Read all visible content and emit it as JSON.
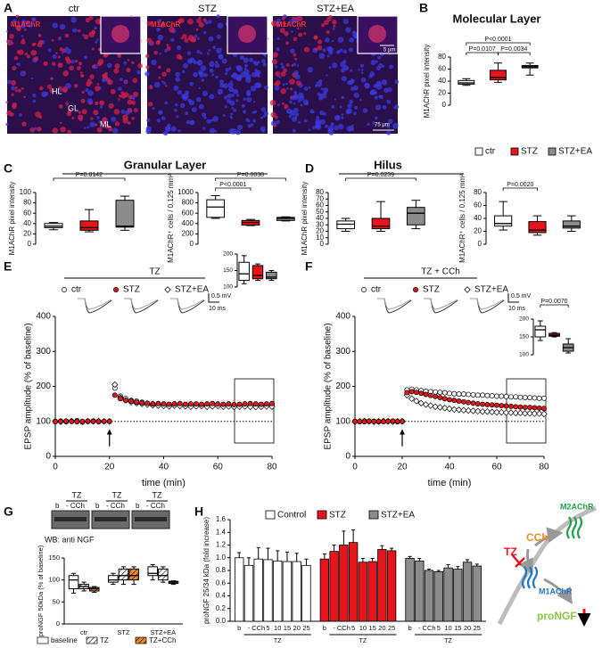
{
  "panel_labels": [
    "A",
    "B",
    "C",
    "D",
    "E",
    "F",
    "G",
    "H"
  ],
  "micrographs": {
    "titles": [
      "ctr",
      "STZ",
      "STZ+EA"
    ],
    "stain": "M1AChR",
    "regions": [
      "HL",
      "GL",
      "ML"
    ],
    "scale_bars": [
      "5 µm",
      "75 µm"
    ]
  },
  "group_legend": [
    {
      "name": "ctr",
      "color": "#ffffff"
    },
    {
      "name": "STZ",
      "color": "#e8141b"
    },
    {
      "name": "STZ+EA",
      "color": "#8c8c8c"
    }
  ],
  "blot": {
    "treatment": "TZ",
    "lanes": [
      "b",
      "- CCh"
    ],
    "caption": "WB: anti NGF"
  },
  "diagram": {
    "agonist": "CCh",
    "receptor_2": "M2AChR",
    "inhibitor": "TZ",
    "receptor_1": "M1AChR",
    "product": "proNGF"
  },
  "chart_data": [
    {
      "type": "box",
      "title": "Molecular Layer",
      "ylabel": "M1AChR pixel intensity",
      "ylim": [
        0,
        80
      ],
      "yticks": [
        0,
        20,
        40,
        60,
        80
      ],
      "boxes": [
        [
          33,
          35,
          37,
          41,
          44
        ],
        [
          38,
          42,
          46,
          58,
          70
        ],
        [
          50,
          62,
          64,
          66,
          70
        ]
      ],
      "brackets": [
        {
          "from": 0,
          "to": 2,
          "label": "P<0.0001"
        },
        {
          "from": 0,
          "to": 1,
          "label": "P=0.0107"
        },
        {
          "from": 1,
          "to": 2,
          "label": "P=0.0034"
        }
      ]
    },
    {
      "type": "box",
      "title": "Granular Layer",
      "ylabel": "M1AChR pixel intensity",
      "ylim": [
        0,
        100
      ],
      "yticks": [
        0,
        20,
        40,
        60,
        80,
        100
      ],
      "boxes": [
        [
          28,
          32,
          35,
          40,
          42
        ],
        [
          24,
          27,
          32,
          45,
          67
        ],
        [
          27,
          33,
          35,
          85,
          93
        ]
      ],
      "brackets": [
        {
          "from": 0,
          "to": 2,
          "label": "P=0.0142"
        }
      ]
    },
    {
      "type": "box",
      "ylabel": "M1AChR⁺ cells / 0.125 mm²",
      "ylim": [
        0,
        1000
      ],
      "yticks": [
        0,
        200,
        400,
        600,
        800,
        1000
      ],
      "boxes": [
        [
          500,
          520,
          720,
          860,
          940
        ],
        [
          360,
          370,
          420,
          460,
          480
        ],
        [
          450,
          460,
          500,
          520,
          530
        ]
      ],
      "brackets": [
        {
          "from": 0,
          "to": 1,
          "label": "P<0.0001"
        },
        {
          "from": 0,
          "to": 2,
          "label": "P=0.0038"
        }
      ]
    },
    {
      "type": "box",
      "title": "Hilus",
      "ylabel": "M1AChR pixel intensity",
      "ylim": [
        0,
        80
      ],
      "yticks": [
        0,
        10,
        20,
        30,
        40,
        50,
        60,
        70,
        80
      ],
      "boxes": [
        [
          20,
          24,
          31,
          36,
          40
        ],
        [
          20,
          24,
          28,
          40,
          66
        ],
        [
          24,
          30,
          48,
          57,
          68
        ]
      ],
      "brackets": [
        {
          "from": 0,
          "to": 2,
          "label": "P=0.0239"
        }
      ]
    },
    {
      "type": "box",
      "ylabel": "M1AChR⁺ cells / 0.125 mm²",
      "ylim": [
        0,
        80
      ],
      "yticks": [
        0,
        20,
        40,
        60,
        80
      ],
      "boxes": [
        [
          22,
          28,
          32,
          44,
          66
        ],
        [
          14,
          18,
          22,
          35,
          44
        ],
        [
          20,
          25,
          28,
          36,
          44
        ]
      ],
      "brackets": [
        {
          "from": 0,
          "to": 1,
          "label": "P=0.0020"
        }
      ]
    },
    {
      "type": "line",
      "header": "TZ",
      "xlabel": "time (min)",
      "ylabel": "EPSP amplitude (% of baseline)",
      "xlim": [
        0,
        80
      ],
      "xticks": [
        0,
        20,
        40,
        60,
        80
      ],
      "ylim": [
        0,
        400
      ],
      "yticks": [
        0,
        100,
        200,
        300,
        400
      ],
      "x": [
        0,
        2,
        4,
        6,
        8,
        10,
        12,
        14,
        16,
        18,
        20,
        22,
        24,
        26,
        28,
        30,
        32,
        34,
        36,
        38,
        40,
        42,
        44,
        46,
        48,
        50,
        52,
        54,
        56,
        58,
        60,
        62,
        64,
        66,
        68,
        70,
        72,
        74,
        76,
        78,
        80
      ],
      "series": [
        {
          "name": "ctr",
          "color": "#ffffff",
          "marker": "circle",
          "values": [
            100,
            101,
            99,
            100,
            102,
            98,
            100,
            101,
            99,
            100,
            100,
            195,
            172,
            165,
            160,
            158,
            155,
            152,
            150,
            150,
            148,
            148,
            150,
            147,
            146,
            148,
            147,
            146,
            145,
            146,
            147,
            145,
            146,
            144,
            145,
            146,
            145,
            144,
            146,
            145,
            146
          ]
        },
        {
          "name": "STZ",
          "color": "#e8141b",
          "marker": "circle",
          "values": [
            99,
            100,
            101,
            100,
            99,
            100,
            101,
            100,
            99,
            100,
            100,
            175,
            165,
            160,
            158,
            155,
            153,
            152,
            150,
            151,
            150,
            149,
            150,
            151,
            149,
            150,
            150,
            149,
            150,
            151,
            150,
            149,
            150,
            148,
            149,
            150,
            151,
            150,
            149,
            150,
            151
          ]
        },
        {
          "name": "STZ+EA",
          "color": "#ffffff",
          "marker": "diamond",
          "values": [
            100,
            99,
            100,
            101,
            100,
            99,
            100,
            100,
            101,
            100,
            100,
            205,
            168,
            160,
            155,
            152,
            150,
            148,
            146,
            145,
            144,
            143,
            145,
            144,
            143,
            142,
            143,
            144,
            142,
            143,
            144,
            142,
            143,
            141,
            142,
            143,
            142,
            141,
            142,
            143,
            142
          ]
        }
      ],
      "scale_bar": [
        "0.5 mV",
        "10 ms"
      ]
    },
    {
      "type": "box",
      "ylim": [
        100,
        200
      ],
      "yticks": [
        100,
        150,
        200
      ],
      "boxes": [
        [
          110,
          120,
          140,
          175,
          195
        ],
        [
          120,
          125,
          135,
          165,
          170
        ],
        [
          120,
          125,
          130,
          145,
          150
        ]
      ],
      "brackets": []
    },
    {
      "type": "line",
      "header": "TZ + CCh",
      "xlabel": "time (min)",
      "ylabel": "EPSP amplitude (% of baseline)",
      "xlim": [
        0,
        80
      ],
      "xticks": [
        0,
        20,
        40,
        60,
        80
      ],
      "ylim": [
        0,
        400
      ],
      "yticks": [
        0,
        100,
        200,
        300,
        400
      ],
      "x": [
        0,
        2,
        4,
        6,
        8,
        10,
        12,
        14,
        16,
        18,
        20,
        22,
        24,
        26,
        28,
        30,
        32,
        34,
        36,
        38,
        40,
        42,
        44,
        46,
        48,
        50,
        52,
        54,
        56,
        58,
        60,
        62,
        64,
        66,
        68,
        70,
        72,
        74,
        76,
        78,
        80
      ],
      "series": [
        {
          "name": "ctr",
          "color": "#ffffff",
          "marker": "circle",
          "values": [
            100,
            99,
            101,
            100,
            100,
            99,
            100,
            101,
            100,
            99,
            100,
            190,
            192,
            190,
            188,
            186,
            185,
            184,
            183,
            182,
            180,
            179,
            178,
            178,
            177,
            176,
            175,
            175,
            174,
            173,
            172,
            172,
            171,
            170,
            170,
            169,
            168,
            168,
            167,
            166,
            166
          ]
        },
        {
          "name": "STZ",
          "color": "#e8141b",
          "marker": "circle",
          "values": [
            100,
            100,
            99,
            101,
            100,
            100,
            99,
            100,
            101,
            100,
            100,
            182,
            185,
            183,
            180,
            177,
            174,
            171,
            168,
            165,
            162,
            160,
            158,
            156,
            154,
            152,
            150,
            149,
            148,
            147,
            146,
            145,
            144,
            143,
            142,
            141,
            140,
            140,
            139,
            138,
            137
          ]
        },
        {
          "name": "STZ+EA",
          "color": "#ffffff",
          "marker": "diamond",
          "values": [
            99,
            100,
            101,
            100,
            99,
            100,
            101,
            100,
            99,
            100,
            100,
            175,
            165,
            158,
            152,
            148,
            145,
            142,
            140,
            138,
            136,
            134,
            133,
            132,
            131,
            130,
            129,
            128,
            128,
            127,
            126,
            126,
            125,
            125,
            124,
            124,
            123,
            123,
            122,
            122,
            121
          ]
        }
      ],
      "scale_bar": [
        "0.5 mV",
        "10 ms"
      ]
    },
    {
      "type": "box",
      "ylim": [
        100,
        200
      ],
      "yticks": [
        100,
        150,
        200
      ],
      "boxes": [
        [
          140,
          150,
          170,
          180,
          195
        ],
        [
          150,
          152,
          155,
          160,
          162
        ],
        [
          105,
          110,
          120,
          130,
          145
        ]
      ],
      "brackets": [
        {
          "from": 0,
          "to": 2,
          "label": "P=0.0070"
        }
      ]
    },
    {
      "type": "grouped-box",
      "ylabel": "proNGF 50kDa (% of baseline)",
      "ylim": [
        0,
        150
      ],
      "yticks": [
        0,
        50,
        100,
        150
      ],
      "categories": [
        "ctr",
        "STZ",
        "STZ+EA"
      ],
      "series": [
        {
          "name": "baseline",
          "color": "#ffffff",
          "hatch": false,
          "values": [
            [
              70,
              80,
              100,
              110,
              115
            ],
            [
              90,
              95,
              100,
              110,
              115
            ],
            [
              100,
              110,
              115,
              130,
              135
            ]
          ]
        },
        {
          "name": "TZ",
          "color": "#ffffff",
          "hatch": true,
          "values": [
            [
              75,
              80,
              85,
              90,
              95
            ],
            [
              90,
              100,
              110,
              125,
              130
            ],
            [
              95,
              100,
              110,
              125,
              130
            ]
          ]
        },
        {
          "name": "TZ+CCh",
          "color": "#f08a24",
          "hatch": true,
          "values": [
            [
              72,
              75,
              80,
              83,
              85
            ],
            [
              90,
              100,
              110,
              125,
              130
            ],
            [
              90,
              92,
              95,
              97,
              98
            ]
          ]
        }
      ]
    },
    {
      "type": "grouped-bar",
      "ylabel": "proNGF 25/34 kDa (fold increase)",
      "ylim": [
        0,
        1.6
      ],
      "yticks": [
        {
          "value": 0,
          "label": "0.0"
        },
        0.2,
        0.4,
        0.6,
        0.8,
        {
          "value": 1,
          "label": "1.0"
        },
        1.2,
        1.4,
        1.6
      ],
      "categories": [
        "b",
        "-",
        "CCh",
        "5",
        "10",
        "15",
        "20",
        "25"
      ],
      "group_label": "TZ",
      "series": [
        {
          "name": "Control",
          "color": "#ffffff",
          "values": [
            1.0,
            0.88,
            0.98,
            0.97,
            0.95,
            0.94,
            0.94,
            0.88
          ],
          "errors": [
            0.08,
            0.12,
            0.18,
            0.18,
            0.16,
            0.15,
            0.13,
            0.1
          ]
        },
        {
          "name": "STZ",
          "color": "#e8141b",
          "values": [
            0.98,
            1.1,
            1.2,
            1.24,
            0.93,
            0.94,
            1.13,
            1.11
          ],
          "errors": [
            0.08,
            0.1,
            0.22,
            0.2,
            0.06,
            0.05,
            0.06,
            0.04
          ]
        },
        {
          "name": "STZ+EA",
          "color": "#8c8c8c",
          "values": [
            0.99,
            0.95,
            0.8,
            0.78,
            0.84,
            0.82,
            0.93,
            0.87
          ],
          "errors": [
            0.03,
            0.04,
            0.02,
            0.02,
            0.05,
            0.04,
            0.04,
            0.03
          ]
        }
      ]
    }
  ]
}
